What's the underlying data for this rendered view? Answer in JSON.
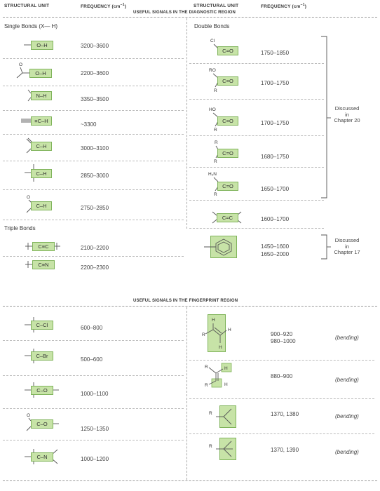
{
  "header": {
    "col_unit_left": "STRUCTURAL UNIT",
    "col_freq_left": "FREQUENCY (cm",
    "col_unit_right": "STRUCTURAL UNIT",
    "col_freq_right": "FREQUENCY (cm",
    "freq_superscript": "−1",
    "freq_close": ")",
    "diagnostic_title": "USEFUL SIGNALS IN THE DIAGNOSTIC REGION",
    "fingerprint_title": "USEFUL SIGNALS IN THE FINGERPRINT REGION"
  },
  "left": {
    "single_bonds_heading": "Single Bonds (X— H)",
    "triple_bonds_heading": "Triple Bonds",
    "single_rows": [
      {
        "label": "O–H",
        "freq": "3200–3600"
      },
      {
        "label": "O–H",
        "freq": "2200–3600"
      },
      {
        "label": "N–H",
        "freq": "3350–3500"
      },
      {
        "label": "≡C–H",
        "freq": "~3300"
      },
      {
        "label": "C–H",
        "freq": "3000–3100"
      },
      {
        "label": "C–H",
        "freq": "2850–3000"
      },
      {
        "label": "C–H",
        "freq": "2750–2850"
      }
    ],
    "triple_rows": [
      {
        "label": "C≡C",
        "freq": "2100–2200"
      },
      {
        "label": "C≡N",
        "freq": "2200–2300"
      }
    ]
  },
  "right": {
    "double_bonds_heading": "Double Bonds",
    "rows": [
      {
        "label": "C=O",
        "sub": "Cl",
        "freq": "1750–1850"
      },
      {
        "label": "C=O",
        "sub": "RO",
        "freq": "1700–1750"
      },
      {
        "label": "C=O",
        "sub": "HO",
        "freq": "1700–1750"
      },
      {
        "label": "C=O",
        "sub": "R",
        "freq": "1680–1750"
      },
      {
        "label": "C=O",
        "sub": "H₂N",
        "freq": "1650–1700"
      },
      {
        "label": "C=C",
        "sub": "",
        "freq": "1600–1700"
      }
    ],
    "aromatic_freq_1": "1450–1600",
    "aromatic_freq_2": "1650–2000",
    "bracket_note_1": [
      "Discussed",
      "in",
      "Chapter 20"
    ],
    "bracket_note_2": [
      "Discussed",
      "in",
      "Chapter 17"
    ]
  },
  "fingerprint": {
    "left_rows": [
      {
        "label": "C–Cl",
        "freq": "600–800"
      },
      {
        "label": "C–Br",
        "freq": "500–600"
      },
      {
        "label": "C–O",
        "freq": "1000–1100"
      },
      {
        "label": "C–O",
        "freq": "1250–1350"
      },
      {
        "label": "C–N",
        "freq": "1000–1200"
      }
    ],
    "right_rows": [
      {
        "freq_1": "900–920",
        "freq_2": "980–1000",
        "note": "(bending)"
      },
      {
        "freq_1": "880–900",
        "note": "(bending)"
      },
      {
        "freq_1": "1370, 1380",
        "note": "(bending)"
      },
      {
        "freq_1": "1370, 1390",
        "note": "(bending)"
      }
    ],
    "atom_R": "R",
    "atom_H": "H",
    "atom_O": "O"
  },
  "colors": {
    "box_fill": "#c7e3a7",
    "box_border": "#7fb35a",
    "rule": "#bbbbbb"
  }
}
